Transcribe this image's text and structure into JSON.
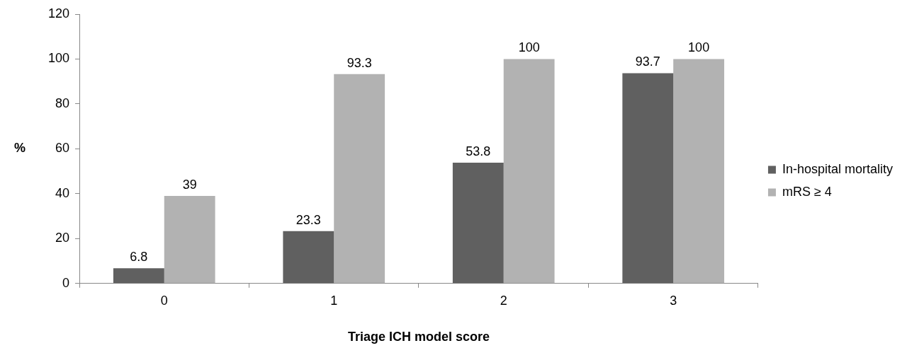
{
  "chart_data": {
    "type": "bar",
    "xlabel": "Triage ICH model score",
    "ylabel": "%",
    "categories": [
      "0",
      "1",
      "2",
      "3"
    ],
    "series": [
      {
        "name": "In-hospital mortality",
        "color": "#606060",
        "values": [
          6.8,
          23.3,
          53.8,
          93.7
        ]
      },
      {
        "name": "mRS ≥ 4",
        "color": "#b2b2b2",
        "values": [
          39,
          93.3,
          100,
          100
        ]
      }
    ],
    "ylim": [
      0,
      120
    ],
    "yticks": [
      0,
      20,
      40,
      60,
      80,
      100,
      120
    ],
    "grid": false,
    "legend": "right",
    "data_labels": true
  }
}
